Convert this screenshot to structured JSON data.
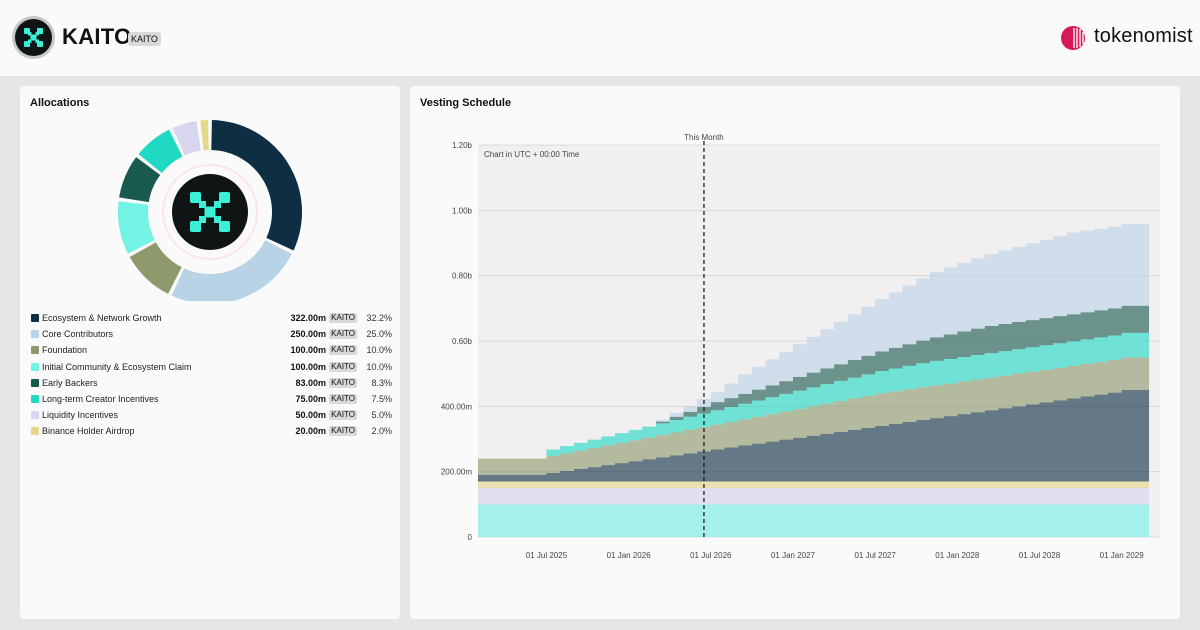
{
  "header": {
    "token_name": "KAITO",
    "ticker": "KAITO",
    "brand": "tokenomist",
    "logo_icon": "kaito-x-icon",
    "brand_icon": "tokenomist-logo-icon"
  },
  "allocations": {
    "title": "Allocations",
    "items": [
      {
        "label": "Ecosystem & Network Growth",
        "amount": "322.00m",
        "unit": "KAITO",
        "pct": "32.2%",
        "value": 32.2,
        "color": "#0e2f43"
      },
      {
        "label": "Core Contributors",
        "amount": "250.00m",
        "unit": "KAITO",
        "pct": "25.0%",
        "value": 25.0,
        "color": "#b9d3e6"
      },
      {
        "label": "Foundation",
        "amount": "100.00m",
        "unit": "KAITO",
        "pct": "10.0%",
        "value": 10.0,
        "color": "#8e9a6b"
      },
      {
        "label": "Initial Community & Ecosystem Claim",
        "amount": "100.00m",
        "unit": "KAITO",
        "pct": "10.0%",
        "value": 10.0,
        "color": "#73f2e6"
      },
      {
        "label": "Early Backers",
        "amount": "83.00m",
        "unit": "KAITO",
        "pct": "8.3%",
        "value": 8.3,
        "color": "#195a4e"
      },
      {
        "label": "Long-term Creator Incentives",
        "amount": "75.00m",
        "unit": "KAITO",
        "pct": "7.5%",
        "value": 7.5,
        "color": "#1fd9c5"
      },
      {
        "label": "Liquidity Incentives",
        "amount": "50.00m",
        "unit": "KAITO",
        "pct": "5.0%",
        "value": 5.0,
        "color": "#d8d5ee"
      },
      {
        "label": "Binance Holder Airdrop",
        "amount": "20.00m",
        "unit": "KAITO",
        "pct": "2.0%",
        "value": 2.0,
        "color": "#e3d889"
      }
    ]
  },
  "vesting": {
    "title": "Vesting Schedule",
    "note": "Chart in UTC + 00:00 Time",
    "marker_label": "This Month"
  },
  "chart_data": {
    "type": "area",
    "title": "Vesting Schedule",
    "x_unit": "month",
    "x": [
      "2025-02",
      "2025-03",
      "2025-04",
      "2025-05",
      "2025-06",
      "2025-07",
      "2025-08",
      "2025-09",
      "2025-10",
      "2025-11",
      "2025-12",
      "2026-01",
      "2026-02",
      "2026-03",
      "2026-04",
      "2026-05",
      "2026-06",
      "2026-07",
      "2026-08",
      "2026-09",
      "2026-10",
      "2026-11",
      "2026-12",
      "2027-01",
      "2027-02",
      "2027-03",
      "2027-04",
      "2027-05",
      "2027-06",
      "2027-07",
      "2027-08",
      "2027-09",
      "2027-10",
      "2027-11",
      "2027-12",
      "2028-01",
      "2028-02",
      "2028-03",
      "2028-04",
      "2028-05",
      "2028-06",
      "2028-07",
      "2028-08",
      "2028-09",
      "2028-10",
      "2028-11",
      "2028-12",
      "2029-01",
      "2029-02"
    ],
    "x_tick_labels": [
      "01 Jul 2025",
      "01 Jan 2026",
      "01 Jul 2026",
      "01 Jan 2027",
      "01 Jul 2027",
      "01 Jan 2028",
      "01 Jul 2028",
      "01 Jan 2029"
    ],
    "y_tick_labels": [
      "0",
      "200.00m",
      "400.00m",
      "0.60b",
      "0.80b",
      "1.00b",
      "1.20b"
    ],
    "ylim": [
      0,
      1.2
    ],
    "y_unit": "billion KAITO",
    "marker_x": "2026-06",
    "series": [
      {
        "name": "Initial Community & Ecosystem Claim",
        "color": "#73f2e6",
        "values": [
          0.1,
          0.1,
          0.1,
          0.1,
          0.1,
          0.1,
          0.1,
          0.1,
          0.1,
          0.1,
          0.1,
          0.1,
          0.1,
          0.1,
          0.1,
          0.1,
          0.1,
          0.1,
          0.1,
          0.1,
          0.1,
          0.1,
          0.1,
          0.1,
          0.1,
          0.1,
          0.1,
          0.1,
          0.1,
          0.1,
          0.1,
          0.1,
          0.1,
          0.1,
          0.1,
          0.1,
          0.1,
          0.1,
          0.1,
          0.1,
          0.1,
          0.1,
          0.1,
          0.1,
          0.1,
          0.1,
          0.1,
          0.1,
          0.1
        ]
      },
      {
        "name": "Liquidity Incentives",
        "color": "#d8d5ee",
        "values": [
          0.05,
          0.05,
          0.05,
          0.05,
          0.05,
          0.05,
          0.05,
          0.05,
          0.05,
          0.05,
          0.05,
          0.05,
          0.05,
          0.05,
          0.05,
          0.05,
          0.05,
          0.05,
          0.05,
          0.05,
          0.05,
          0.05,
          0.05,
          0.05,
          0.05,
          0.05,
          0.05,
          0.05,
          0.05,
          0.05,
          0.05,
          0.05,
          0.05,
          0.05,
          0.05,
          0.05,
          0.05,
          0.05,
          0.05,
          0.05,
          0.05,
          0.05,
          0.05,
          0.05,
          0.05,
          0.05,
          0.05,
          0.05,
          0.05
        ]
      },
      {
        "name": "Binance Holder Airdrop",
        "color": "#e3d889",
        "values": [
          0.02,
          0.02,
          0.02,
          0.02,
          0.02,
          0.02,
          0.02,
          0.02,
          0.02,
          0.02,
          0.02,
          0.02,
          0.02,
          0.02,
          0.02,
          0.02,
          0.02,
          0.02,
          0.02,
          0.02,
          0.02,
          0.02,
          0.02,
          0.02,
          0.02,
          0.02,
          0.02,
          0.02,
          0.02,
          0.02,
          0.02,
          0.02,
          0.02,
          0.02,
          0.02,
          0.02,
          0.02,
          0.02,
          0.02,
          0.02,
          0.02,
          0.02,
          0.02,
          0.02,
          0.02,
          0.02,
          0.02,
          0.02,
          0.02
        ]
      },
      {
        "name": "Ecosystem & Network Growth",
        "color": "#0e2f43",
        "values": [
          0.02,
          0.02,
          0.02,
          0.02,
          0.02,
          0.026,
          0.032,
          0.038,
          0.044,
          0.05,
          0.056,
          0.062,
          0.068,
          0.074,
          0.08,
          0.086,
          0.092,
          0.098,
          0.104,
          0.11,
          0.116,
          0.122,
          0.128,
          0.134,
          0.14,
          0.146,
          0.152,
          0.158,
          0.164,
          0.17,
          0.176,
          0.182,
          0.188,
          0.194,
          0.2,
          0.206,
          0.212,
          0.218,
          0.224,
          0.23,
          0.236,
          0.242,
          0.248,
          0.254,
          0.26,
          0.266,
          0.272,
          0.28,
          0.28
        ]
      },
      {
        "name": "Foundation",
        "color": "#8e9a6b",
        "values": [
          0.05,
          0.05,
          0.05,
          0.05,
          0.05,
          0.052,
          0.054,
          0.056,
          0.058,
          0.06,
          0.062,
          0.064,
          0.066,
          0.068,
          0.07,
          0.072,
          0.074,
          0.076,
          0.078,
          0.08,
          0.082,
          0.084,
          0.086,
          0.088,
          0.09,
          0.092,
          0.094,
          0.096,
          0.098,
          0.1,
          0.1,
          0.1,
          0.1,
          0.1,
          0.1,
          0.1,
          0.1,
          0.1,
          0.1,
          0.1,
          0.1,
          0.1,
          0.1,
          0.1,
          0.1,
          0.1,
          0.1,
          0.1,
          0.1
        ]
      },
      {
        "name": "Long-term Creator Incentives",
        "color": "#1fd9c5",
        "values": [
          0,
          0,
          0,
          0,
          0,
          0.02,
          0.022,
          0.024,
          0.026,
          0.028,
          0.03,
          0.032,
          0.034,
          0.036,
          0.038,
          0.04,
          0.042,
          0.044,
          0.046,
          0.048,
          0.05,
          0.052,
          0.054,
          0.056,
          0.058,
          0.06,
          0.062,
          0.064,
          0.066,
          0.068,
          0.07,
          0.072,
          0.074,
          0.075,
          0.075,
          0.075,
          0.075,
          0.075,
          0.075,
          0.075,
          0.075,
          0.075,
          0.075,
          0.075,
          0.075,
          0.075,
          0.075,
          0.075,
          0.075
        ]
      },
      {
        "name": "Early Backers",
        "color": "#195a4e",
        "values": [
          0,
          0,
          0,
          0,
          0,
          0,
          0,
          0,
          0,
          0,
          0,
          0,
          0,
          0.005,
          0.01,
          0.015,
          0.02,
          0.025,
          0.027,
          0.03,
          0.033,
          0.036,
          0.039,
          0.042,
          0.045,
          0.048,
          0.051,
          0.054,
          0.057,
          0.06,
          0.063,
          0.066,
          0.069,
          0.072,
          0.075,
          0.078,
          0.081,
          0.083,
          0.083,
          0.083,
          0.083,
          0.083,
          0.083,
          0.083,
          0.083,
          0.083,
          0.083,
          0.083,
          0.083
        ]
      },
      {
        "name": "Core Contributors",
        "color": "#b9d3e6",
        "values": [
          0,
          0,
          0,
          0,
          0,
          0,
          0,
          0,
          0,
          0,
          0,
          0,
          0,
          0.006,
          0.012,
          0.018,
          0.024,
          0.03,
          0.045,
          0.06,
          0.07,
          0.08,
          0.09,
          0.1,
          0.11,
          0.12,
          0.13,
          0.14,
          0.15,
          0.16,
          0.17,
          0.18,
          0.19,
          0.2,
          0.205,
          0.21,
          0.215,
          0.22,
          0.225,
          0.23,
          0.235,
          0.24,
          0.245,
          0.25,
          0.25,
          0.25,
          0.25,
          0.25,
          0.25
        ]
      }
    ]
  }
}
